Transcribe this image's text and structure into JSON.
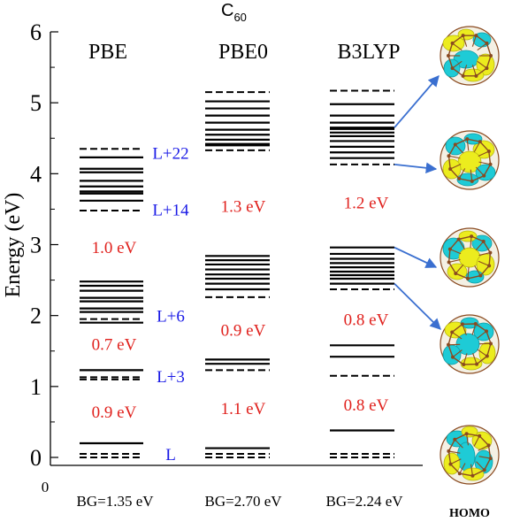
{
  "chart_data": {
    "type": "energy-level-diagram",
    "title": "C",
    "title_subscript": "60",
    "ylabel": "Energy (eV)",
    "ylim": [
      0,
      6
    ],
    "yticks": [
      0,
      1,
      2,
      3,
      4,
      5,
      6
    ],
    "xtick_zero_label": "0",
    "series": [
      {
        "name": "PBE",
        "band_gap_label": "BG=1.35 eV",
        "solid_levels": [
          0.2,
          1.23,
          1.9,
          2.05,
          2.1,
          2.2,
          2.25,
          2.35,
          2.42,
          2.48,
          3.62,
          3.72,
          3.75,
          3.82,
          3.9,
          4.02,
          4.07,
          4.23
        ],
        "dashed_levels": [
          0.0,
          0.05,
          1.1,
          1.13,
          1.95,
          3.48,
          4.35
        ],
        "gap_labels": [
          {
            "text": "0.9 eV",
            "y": 0.65
          },
          {
            "text": "0.7 eV",
            "y": 1.6
          },
          {
            "text": "1.0 eV",
            "y": 2.97
          }
        ]
      },
      {
        "name": "PBE0",
        "band_gap_label": "BG=2.70 eV",
        "solid_levels": [
          0.13,
          1.32,
          1.38,
          2.37,
          2.45,
          2.52,
          2.58,
          2.65,
          2.72,
          2.78,
          2.84,
          4.4,
          4.42,
          4.48,
          4.55,
          4.62,
          4.72,
          4.82,
          4.92,
          5.02
        ],
        "dashed_levels": [
          0.0,
          0.05,
          1.23,
          2.26,
          4.33,
          5.15
        ],
        "gap_labels": [
          {
            "text": "1.1 eV",
            "y": 0.7
          },
          {
            "text": "0.9 eV",
            "y": 1.8
          },
          {
            "text": "1.3 eV",
            "y": 3.55
          }
        ]
      },
      {
        "name": "B3LYP",
        "band_gap_label": "BG=2.24 eV",
        "solid_levels": [
          0.38,
          1.42,
          1.58,
          2.45,
          2.52,
          2.57,
          2.62,
          2.68,
          2.74,
          2.8,
          2.87,
          2.96,
          4.22,
          4.3,
          4.38,
          4.46,
          4.53,
          4.58,
          4.63,
          4.65,
          4.72,
          4.82,
          4.98
        ],
        "dashed_levels": [
          0.0,
          0.05,
          1.15,
          2.37,
          4.13,
          5.17
        ],
        "gap_labels": [
          {
            "text": "0.8 eV",
            "y": 0.75
          },
          {
            "text": "0.8 eV",
            "y": 1.95
          },
          {
            "text": "1.2 eV",
            "y": 3.6
          }
        ]
      }
    ],
    "level_labels": [
      {
        "text": "L",
        "y": 0.05
      },
      {
        "text": "L+3",
        "y": 1.15
      },
      {
        "text": "L+6",
        "y": 2.0
      },
      {
        "text": "L+14",
        "y": 3.5
      },
      {
        "text": "L+22",
        "y": 4.3
      }
    ],
    "orbital_images": [
      {
        "name": "orbital-1",
        "target_level": 4.65
      },
      {
        "name": "orbital-2",
        "target_level": 4.13
      },
      {
        "name": "orbital-3",
        "target_level": 2.96
      },
      {
        "name": "orbital-4",
        "target_level": 2.45
      },
      {
        "name": "orbital-homo",
        "label": "HOMO"
      }
    ],
    "colors": {
      "levels": "#000000",
      "gap_label": "#e0201c",
      "level_label": "#1a1ae6",
      "arrow": "#3a6fd0",
      "lobe_yellow": "#ecec1e",
      "lobe_cyan": "#1ecbd6",
      "cage": "#8a4a20"
    }
  }
}
